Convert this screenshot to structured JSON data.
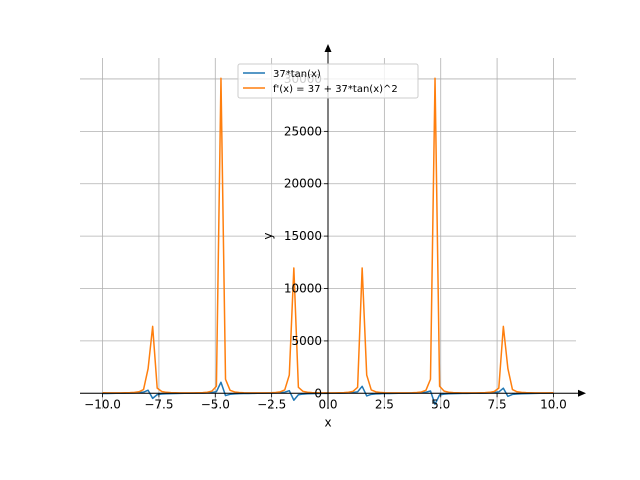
{
  "chart_data": {
    "type": "line",
    "xlabel": "x",
    "ylabel": "y",
    "xlim": [
      -11.0,
      11.0
    ],
    "ylim": [
      -1500,
      32000
    ],
    "xticks": [
      -10.0,
      -7.5,
      -5.0,
      -2.5,
      0.0,
      2.5,
      5.0,
      7.5,
      10.0
    ],
    "xtick_labels": [
      "−10.0",
      "−7.5",
      "−5.0",
      "−2.5",
      "0.0",
      "2.5",
      "5.0",
      "7.5",
      "10.0"
    ],
    "yticks": [
      0,
      5000,
      10000,
      15000,
      20000,
      25000,
      30000
    ],
    "ytick_labels": [
      "0",
      "5000",
      "10000",
      "15000",
      "20000",
      "25000",
      "30000"
    ],
    "grid": true,
    "legend_position": "top-center",
    "x_range": [
      -10,
      10
    ],
    "sample_count": 100,
    "series": [
      {
        "name": "37*tan(x)",
        "expression": "37*tan(x)",
        "color": "#1f77b4"
      },
      {
        "name": "f'(x) = 37 + 37*tan(x)^2",
        "expression": "37 + 37*tan(x)^2",
        "color": "#ff7f0e"
      }
    ]
  }
}
